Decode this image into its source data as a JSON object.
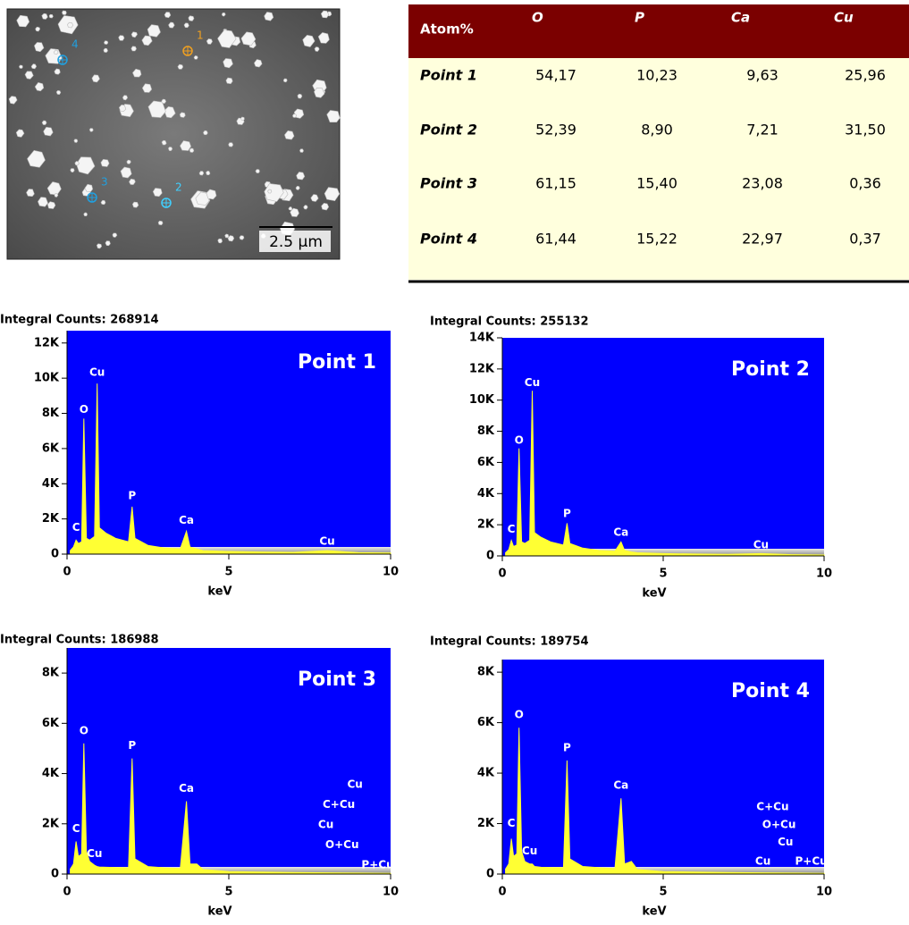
{
  "sem_image": {
    "points": [
      "1",
      "2",
      "3",
      "4"
    ],
    "scale_bar": "2.5 µm"
  },
  "table": {
    "header": [
      "Atom%",
      "O",
      "P",
      "Ca",
      "Cu"
    ],
    "rows": [
      [
        "Point 1",
        "54,17",
        "10,23",
        "9,63",
        "25,96"
      ],
      [
        "Point 2",
        "52,39",
        "8,90",
        "7,21",
        "31,50"
      ],
      [
        "Point 3",
        "61,15",
        "15,40",
        "23,08",
        "0,36"
      ],
      [
        "Point 4",
        "61,44",
        "15,22",
        "22,97",
        "0,37"
      ]
    ]
  },
  "chart_data": [
    {
      "type": "area",
      "title": "Integral Counts: 268914",
      "label": "Point 1",
      "xlabel": "keV",
      "x": [
        0.1,
        0.2,
        0.28,
        0.35,
        0.45,
        0.52,
        0.6,
        0.7,
        0.85,
        0.93,
        1.0,
        1.2,
        1.5,
        1.9,
        2.01,
        2.1,
        2.5,
        3.0,
        3.5,
        3.69,
        3.8,
        4.01,
        4.2,
        5,
        6,
        7,
        8.04,
        9,
        10
      ],
      "values": [
        200,
        400,
        800,
        600,
        700,
        7700,
        900,
        800,
        1000,
        9700,
        1500,
        1200,
        900,
        700,
        2700,
        900,
        500,
        350,
        300,
        1300,
        400,
        300,
        200,
        150,
        120,
        100,
        200,
        80,
        60
      ],
      "peak_labels": [
        "C",
        "O",
        "Cu",
        "P",
        "Ca",
        "Cu"
      ],
      "xlim": [
        0,
        10
      ],
      "xticks": [
        0,
        5,
        10
      ],
      "ylim": [
        0,
        12700
      ],
      "yticks": [
        0,
        {
          "value": 2000,
          "label": "2K"
        },
        {
          "value": 4000,
          "label": "4K"
        },
        {
          "value": 6000,
          "label": "6K"
        },
        {
          "value": 8000,
          "label": "8K"
        },
        {
          "value": 10000,
          "label": "10K"
        },
        {
          "value": 12000,
          "label": "12K"
        }
      ],
      "background": "#0000ff",
      "color": "#ffff33"
    },
    {
      "type": "area",
      "title": "Integral Counts: 255132",
      "label": "Point 2",
      "xlabel": "keV",
      "x": [
        0.1,
        0.2,
        0.28,
        0.35,
        0.45,
        0.52,
        0.6,
        0.7,
        0.85,
        0.93,
        1.0,
        1.2,
        1.5,
        1.9,
        2.01,
        2.1,
        2.5,
        3.0,
        3.5,
        3.69,
        3.8,
        4.01,
        4.2,
        5,
        6,
        7,
        8.04,
        9,
        10
      ],
      "values": [
        200,
        400,
        1000,
        600,
        700,
        6900,
        900,
        800,
        1000,
        10600,
        1500,
        1200,
        900,
        700,
        2100,
        800,
        500,
        350,
        300,
        900,
        350,
        250,
        200,
        150,
        120,
        100,
        150,
        80,
        60
      ],
      "peak_labels": [
        "C",
        "O",
        "Cu",
        "P",
        "Ca",
        "Cu"
      ],
      "xlim": [
        0,
        10
      ],
      "xticks": [
        0,
        5,
        10
      ],
      "ylim": [
        0,
        14000
      ],
      "yticks": [
        0,
        {
          "value": 2000,
          "label": "2K"
        },
        {
          "value": 4000,
          "label": "4K"
        },
        {
          "value": 6000,
          "label": "6K"
        },
        {
          "value": 8000,
          "label": "8K"
        },
        {
          "value": 10000,
          "label": "10K"
        },
        {
          "value": 12000,
          "label": "12K"
        },
        {
          "value": 14000,
          "label": "14K"
        }
      ],
      "background": "#0000ff",
      "color": "#ffff33"
    },
    {
      "type": "area",
      "title": "Integral Counts: 186988",
      "label": "Point 3",
      "xlabel": "keV",
      "x": [
        0.1,
        0.2,
        0.28,
        0.35,
        0.45,
        0.52,
        0.6,
        0.7,
        0.85,
        0.93,
        1.0,
        1.2,
        1.5,
        1.9,
        2.01,
        2.1,
        2.5,
        3.0,
        3.5,
        3.69,
        3.8,
        4.01,
        4.2,
        5,
        6,
        7,
        8.04,
        9,
        10
      ],
      "values": [
        200,
        400,
        1300,
        700,
        800,
        5200,
        900,
        500,
        350,
        300,
        280,
        270,
        260,
        250,
        4600,
        600,
        300,
        250,
        220,
        2900,
        400,
        400,
        180,
        100,
        80,
        60,
        50,
        40,
        30
      ],
      "peak_labels": [
        "C",
        "O",
        "Cu",
        "P",
        "Ca",
        "Cu",
        "C+Cu",
        "Cu",
        "O+Cu",
        "P+Cu"
      ],
      "xlim": [
        0,
        10
      ],
      "xticks": [
        0,
        5,
        10
      ],
      "ylim": [
        0,
        9000
      ],
      "yticks": [
        0,
        {
          "value": 2000,
          "label": "2K"
        },
        {
          "value": 4000,
          "label": "4K"
        },
        {
          "value": 6000,
          "label": "6K"
        },
        {
          "value": 8000,
          "label": "8K"
        }
      ],
      "background": "#0000ff",
      "color": "#ffff33"
    },
    {
      "type": "area",
      "title": "Integral Counts: 189754",
      "label": "Point 4",
      "xlabel": "keV",
      "x": [
        0.1,
        0.2,
        0.28,
        0.35,
        0.45,
        0.52,
        0.6,
        0.7,
        0.85,
        0.93,
        1.0,
        1.2,
        1.5,
        1.9,
        2.01,
        2.1,
        2.5,
        3.0,
        3.5,
        3.69,
        3.8,
        4.01,
        4.2,
        5,
        6,
        7,
        8.04,
        9,
        10
      ],
      "values": [
        200,
        400,
        1400,
        700,
        800,
        5800,
        900,
        500,
        400,
        400,
        300,
        270,
        260,
        250,
        4500,
        600,
        300,
        250,
        220,
        3000,
        400,
        500,
        180,
        100,
        80,
        60,
        50,
        40,
        30
      ],
      "peak_labels": [
        "C",
        "O",
        "Cu",
        "P",
        "Ca",
        "C+Cu",
        "O+Cu",
        "Cu",
        "Cu",
        "P+Cu"
      ],
      "xlim": [
        0,
        10
      ],
      "xticks": [
        0,
        5,
        10
      ],
      "ylim": [
        0,
        8500
      ],
      "yticks": [
        0,
        {
          "value": 2000,
          "label": "2K"
        },
        {
          "value": 4000,
          "label": "4K"
        },
        {
          "value": 6000,
          "label": "6K"
        },
        {
          "value": 8000,
          "label": "8K"
        }
      ],
      "background": "#0000ff",
      "color": "#ffff33"
    }
  ]
}
